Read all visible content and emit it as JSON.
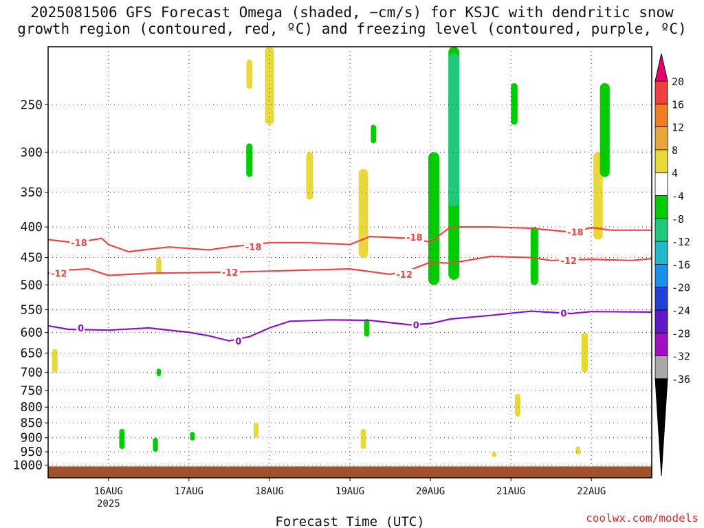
{
  "title_line1": "2025081506 GFS Forecast Omega (shaded, −cm/s) for KSJC with dendritic snow",
  "title_line2": "growth region (contoured, red, ºC) and freezing level (contoured, purple, ºC)",
  "watermark": "coolwx.com/models",
  "chart_data": {
    "type": "heatmap",
    "xlabel": "Forecast Time (UTC)",
    "x_range_hours_since_2025081506": [
      0,
      180
    ],
    "x_ticks": [
      {
        "label": "16AUG",
        "sub": "2025",
        "hour": 18
      },
      {
        "label": "17AUG",
        "sub": "",
        "hour": 42
      },
      {
        "label": "18AUG",
        "sub": "",
        "hour": 66
      },
      {
        "label": "19AUG",
        "sub": "",
        "hour": 90
      },
      {
        "label": "20AUG",
        "sub": "",
        "hour": 114
      },
      {
        "label": "21AUG",
        "sub": "",
        "hour": 138
      },
      {
        "label": "22AUG",
        "sub": "",
        "hour": 162
      }
    ],
    "y_scale": "log-pressure (hPa, inverted)",
    "y_range_hpa": [
      1050,
      200
    ],
    "y_ticks": [
      250,
      300,
      350,
      400,
      450,
      500,
      550,
      600,
      650,
      700,
      750,
      800,
      850,
      900,
      950,
      1000
    ],
    "colorbar": {
      "labels": [
        "20",
        "16",
        "12",
        "8",
        "4",
        "-4",
        "-8",
        "-12",
        "-16",
        "-20",
        "-24",
        "-28",
        "-32",
        "-36"
      ],
      "colors": [
        "#e8006e",
        "#ee4040",
        "#f07e20",
        "#e8a838",
        "#e8d838",
        "#ffffff",
        "#00cc00",
        "#20c87c",
        "#20b8c8",
        "#1890ee",
        "#2040d8",
        "#6018c8",
        "#a010c0",
        "#a8a8a8",
        "#000000"
      ]
    },
    "contours": [
      {
        "name": "dendritic snow growth region",
        "color": "#ee4444",
        "level": -18,
        "points": [
          [
            0,
            420
          ],
          [
            8,
            425
          ],
          [
            16,
            418
          ],
          [
            18,
            428
          ],
          [
            24,
            440
          ],
          [
            36,
            432
          ],
          [
            48,
            437
          ],
          [
            54,
            432
          ],
          [
            66,
            425
          ],
          [
            78,
            425
          ],
          [
            90,
            428
          ],
          [
            96,
            415
          ],
          [
            108,
            418
          ],
          [
            114,
            424
          ],
          [
            120,
            400
          ],
          [
            132,
            400
          ],
          [
            144,
            402
          ],
          [
            156,
            408
          ],
          [
            162,
            401
          ],
          [
            168,
            405
          ],
          [
            180,
            405
          ]
        ],
        "labels": [
          [
            6,
            425
          ],
          [
            58,
            432
          ],
          [
            106,
            416
          ],
          [
            154,
            408
          ]
        ]
      },
      {
        "name": "dendritic snow growth region",
        "color": "#ee4444",
        "level": -12,
        "points": [
          [
            0,
            478
          ],
          [
            6,
            472
          ],
          [
            12,
            470
          ],
          [
            18,
            482
          ],
          [
            30,
            478
          ],
          [
            42,
            477
          ],
          [
            54,
            476
          ],
          [
            66,
            474
          ],
          [
            78,
            472
          ],
          [
            90,
            470
          ],
          [
            102,
            480
          ],
          [
            108,
            472
          ],
          [
            114,
            458
          ],
          [
            120,
            460
          ],
          [
            132,
            448
          ],
          [
            144,
            450
          ],
          [
            150,
            455
          ],
          [
            162,
            453
          ],
          [
            174,
            455
          ],
          [
            180,
            452
          ]
        ],
        "labels": [
          [
            0,
            478
          ],
          [
            51,
            476
          ],
          [
            103,
            480
          ],
          [
            152,
            455
          ]
        ]
      },
      {
        "name": "freezing level",
        "color": "#8a10c8",
        "level": 0,
        "points": [
          [
            0,
            585
          ],
          [
            6,
            593
          ],
          [
            18,
            595
          ],
          [
            30,
            590
          ],
          [
            42,
            600
          ],
          [
            48,
            608
          ],
          [
            54,
            620
          ],
          [
            60,
            610
          ],
          [
            66,
            590
          ],
          [
            72,
            575
          ],
          [
            84,
            572
          ],
          [
            96,
            573
          ],
          [
            108,
            583
          ],
          [
            114,
            580
          ],
          [
            120,
            570
          ],
          [
            132,
            562
          ],
          [
            144,
            553
          ],
          [
            156,
            558
          ],
          [
            162,
            554
          ],
          [
            180,
            555
          ]
        ],
        "labels": [
          [
            8,
            590
          ],
          [
            55,
            620
          ],
          [
            108,
            583
          ],
          [
            152,
            557
          ]
        ]
      }
    ],
    "omega_patches": [
      {
        "value": 4,
        "hour": 60,
        "p": [
          210,
          235
        ]
      },
      {
        "value": 4,
        "hour": 66,
        "p": [
          200,
          270
        ]
      },
      {
        "value": 4,
        "hour": 78,
        "p": [
          300,
          360
        ]
      },
      {
        "value": 4,
        "hour": 94,
        "p": [
          320,
          450
        ]
      },
      {
        "value": 4,
        "hour": 164,
        "p": [
          300,
          420
        ]
      },
      {
        "value": 4,
        "hour": 2,
        "p": [
          640,
          700
        ]
      },
      {
        "value": 4,
        "hour": 33,
        "p": [
          450,
          480
        ]
      },
      {
        "value": 4,
        "hour": 160,
        "p": [
          600,
          700
        ]
      },
      {
        "value": 4,
        "hour": 94,
        "p": [
          870,
          940
        ]
      },
      {
        "value": 4,
        "hour": 140,
        "p": [
          760,
          830
        ]
      },
      {
        "value": 4,
        "hour": 62,
        "p": [
          850,
          900
        ]
      },
      {
        "value": 4,
        "hour": 133,
        "p": [
          950,
          970
        ]
      },
      {
        "value": 4,
        "hour": 158,
        "p": [
          930,
          960
        ]
      },
      {
        "value": -8,
        "hour": 121,
        "p": [
          200,
          490
        ]
      },
      {
        "value": -12,
        "hour": 121,
        "p": [
          205,
          370
        ]
      },
      {
        "value": -8,
        "hour": 166,
        "p": [
          230,
          330
        ]
      },
      {
        "value": -8,
        "hour": 139,
        "p": [
          230,
          270
        ]
      },
      {
        "value": -8,
        "hour": 145,
        "p": [
          400,
          500
        ]
      },
      {
        "value": -8,
        "hour": 115,
        "p": [
          300,
          500
        ]
      },
      {
        "value": -8,
        "hour": 60,
        "p": [
          290,
          330
        ]
      },
      {
        "value": -8,
        "hour": 97,
        "p": [
          270,
          290
        ]
      },
      {
        "value": -8,
        "hour": 22,
        "p": [
          870,
          940
        ]
      },
      {
        "value": -8,
        "hour": 32,
        "p": [
          900,
          950
        ]
      },
      {
        "value": -8,
        "hour": 43,
        "p": [
          880,
          910
        ]
      },
      {
        "value": -8,
        "hour": 33,
        "p": [
          690,
          710
        ]
      },
      {
        "value": -8,
        "hour": 95,
        "p": [
          570,
          610
        ]
      }
    ]
  }
}
